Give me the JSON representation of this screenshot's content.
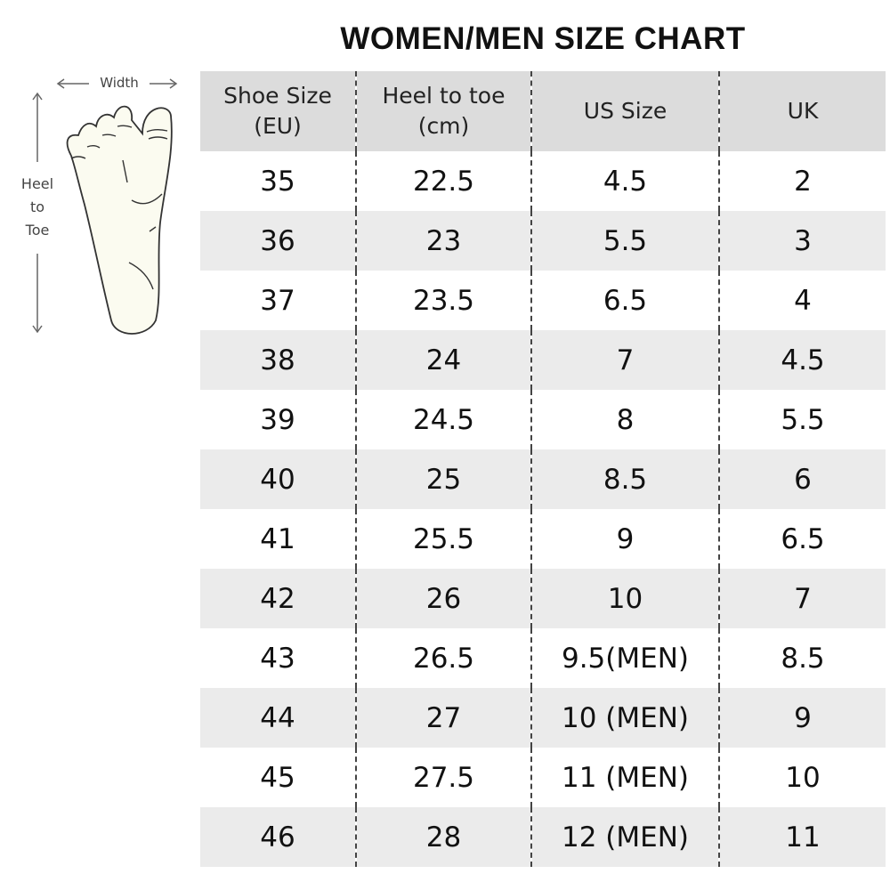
{
  "title": "WOMEN/MEN SIZE CHART",
  "diagram": {
    "width_label": "Width",
    "length_label": [
      "Heel",
      "to",
      "Toe"
    ]
  },
  "table": {
    "headers": [
      [
        "Shoe Size",
        "(EU)"
      ],
      [
        "Heel to toe",
        "(cm)"
      ],
      [
        "US Size"
      ],
      [
        "UK"
      ]
    ],
    "rows": [
      [
        "35",
        "22.5",
        "4.5",
        "2"
      ],
      [
        "36",
        "23",
        "5.5",
        "3"
      ],
      [
        "37",
        "23.5",
        "6.5",
        "4"
      ],
      [
        "38",
        "24",
        "7",
        "4.5"
      ],
      [
        "39",
        "24.5",
        "8",
        "5.5"
      ],
      [
        "40",
        "25",
        "8.5",
        "6"
      ],
      [
        "41",
        "25.5",
        "9",
        "6.5"
      ],
      [
        "42",
        "26",
        "10",
        "7"
      ],
      [
        "43",
        "26.5",
        "9.5(MEN)",
        "8.5"
      ],
      [
        "44",
        "27",
        "10 (MEN)",
        "9"
      ],
      [
        "45",
        "27.5",
        "11 (MEN)",
        "10"
      ],
      [
        "46",
        "28",
        "12 (MEN)",
        "11"
      ]
    ]
  },
  "colors": {
    "header_bg": "#dcdcdc",
    "alt_row_bg": "#ebebeb",
    "foot_fill": "#fbfbf0"
  }
}
